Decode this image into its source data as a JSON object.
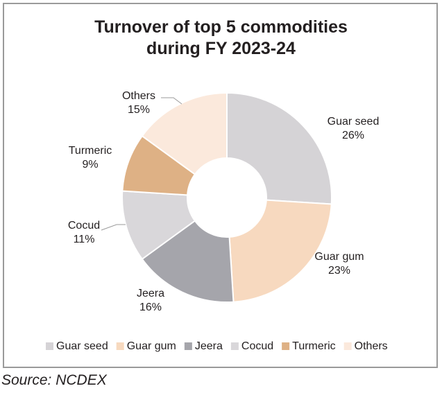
{
  "chart_data": {
    "type": "pie",
    "title_lines": [
      "Turnover of top 5 commodities",
      "during FY 2023-24"
    ],
    "categories": [
      "Guar seed",
      "Guar gum",
      "Jeera",
      "Cocud",
      "Turmeric",
      "Others"
    ],
    "values": [
      26,
      23,
      16,
      11,
      9,
      15
    ],
    "value_labels": [
      "26%",
      "23%",
      "16%",
      "11%",
      "9%",
      "15%"
    ],
    "colors": [
      "#d5d3d6",
      "#f7d9bf",
      "#a5a5ab",
      "#d9d7da",
      "#deb185",
      "#fbe9dc"
    ],
    "legend_position": "bottom",
    "donut": true
  },
  "source": "Source: NCDEX"
}
